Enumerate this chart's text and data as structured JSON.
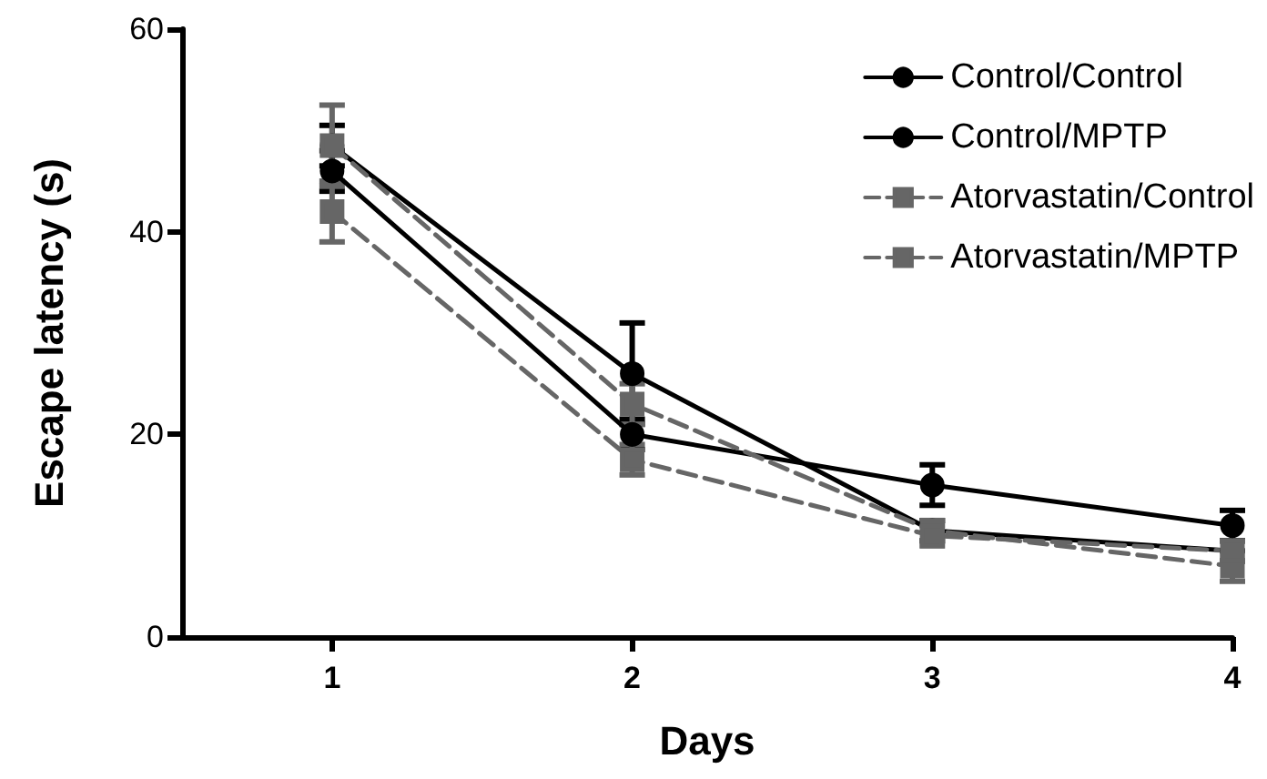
{
  "chart_data": {
    "type": "line",
    "xlabel": "Days",
    "ylabel": "Escape latency (s)",
    "x": [
      1,
      2,
      3,
      4
    ],
    "xlim": [
      0.5,
      4
    ],
    "xticks": [
      1,
      2,
      3,
      4
    ],
    "ylim": [
      0,
      60
    ],
    "yticks": [
      0,
      20,
      40,
      60
    ],
    "grid": false,
    "legend": "top right",
    "series": [
      {
        "name": "Control/Control",
        "color": "#000000",
        "values": [
          46,
          20,
          15,
          11
        ],
        "errors": [
          2,
          1.5,
          2,
          1.5
        ],
        "marker": "circle",
        "line_style": "solid"
      },
      {
        "name": "Control/MPTP",
        "color": "#000000",
        "values": [
          48.5,
          26,
          10.5,
          8.5
        ],
        "errors": [
          2,
          5,
          1,
          1
        ],
        "marker": "circle",
        "line_style": "solid"
      },
      {
        "name": "Atorvastatin/Control",
        "color": "#666666",
        "values": [
          48.5,
          23,
          10.5,
          7
        ],
        "errors": [
          4,
          2,
          1,
          1.5
        ],
        "marker": "square",
        "line_style": "dashed"
      },
      {
        "name": "Atorvastatin/MPTP",
        "color": "#666666",
        "values": [
          42,
          17.5,
          10,
          8.5
        ],
        "errors": [
          3,
          1.5,
          1,
          1
        ],
        "marker": "square",
        "line_style": "dashed"
      }
    ]
  }
}
